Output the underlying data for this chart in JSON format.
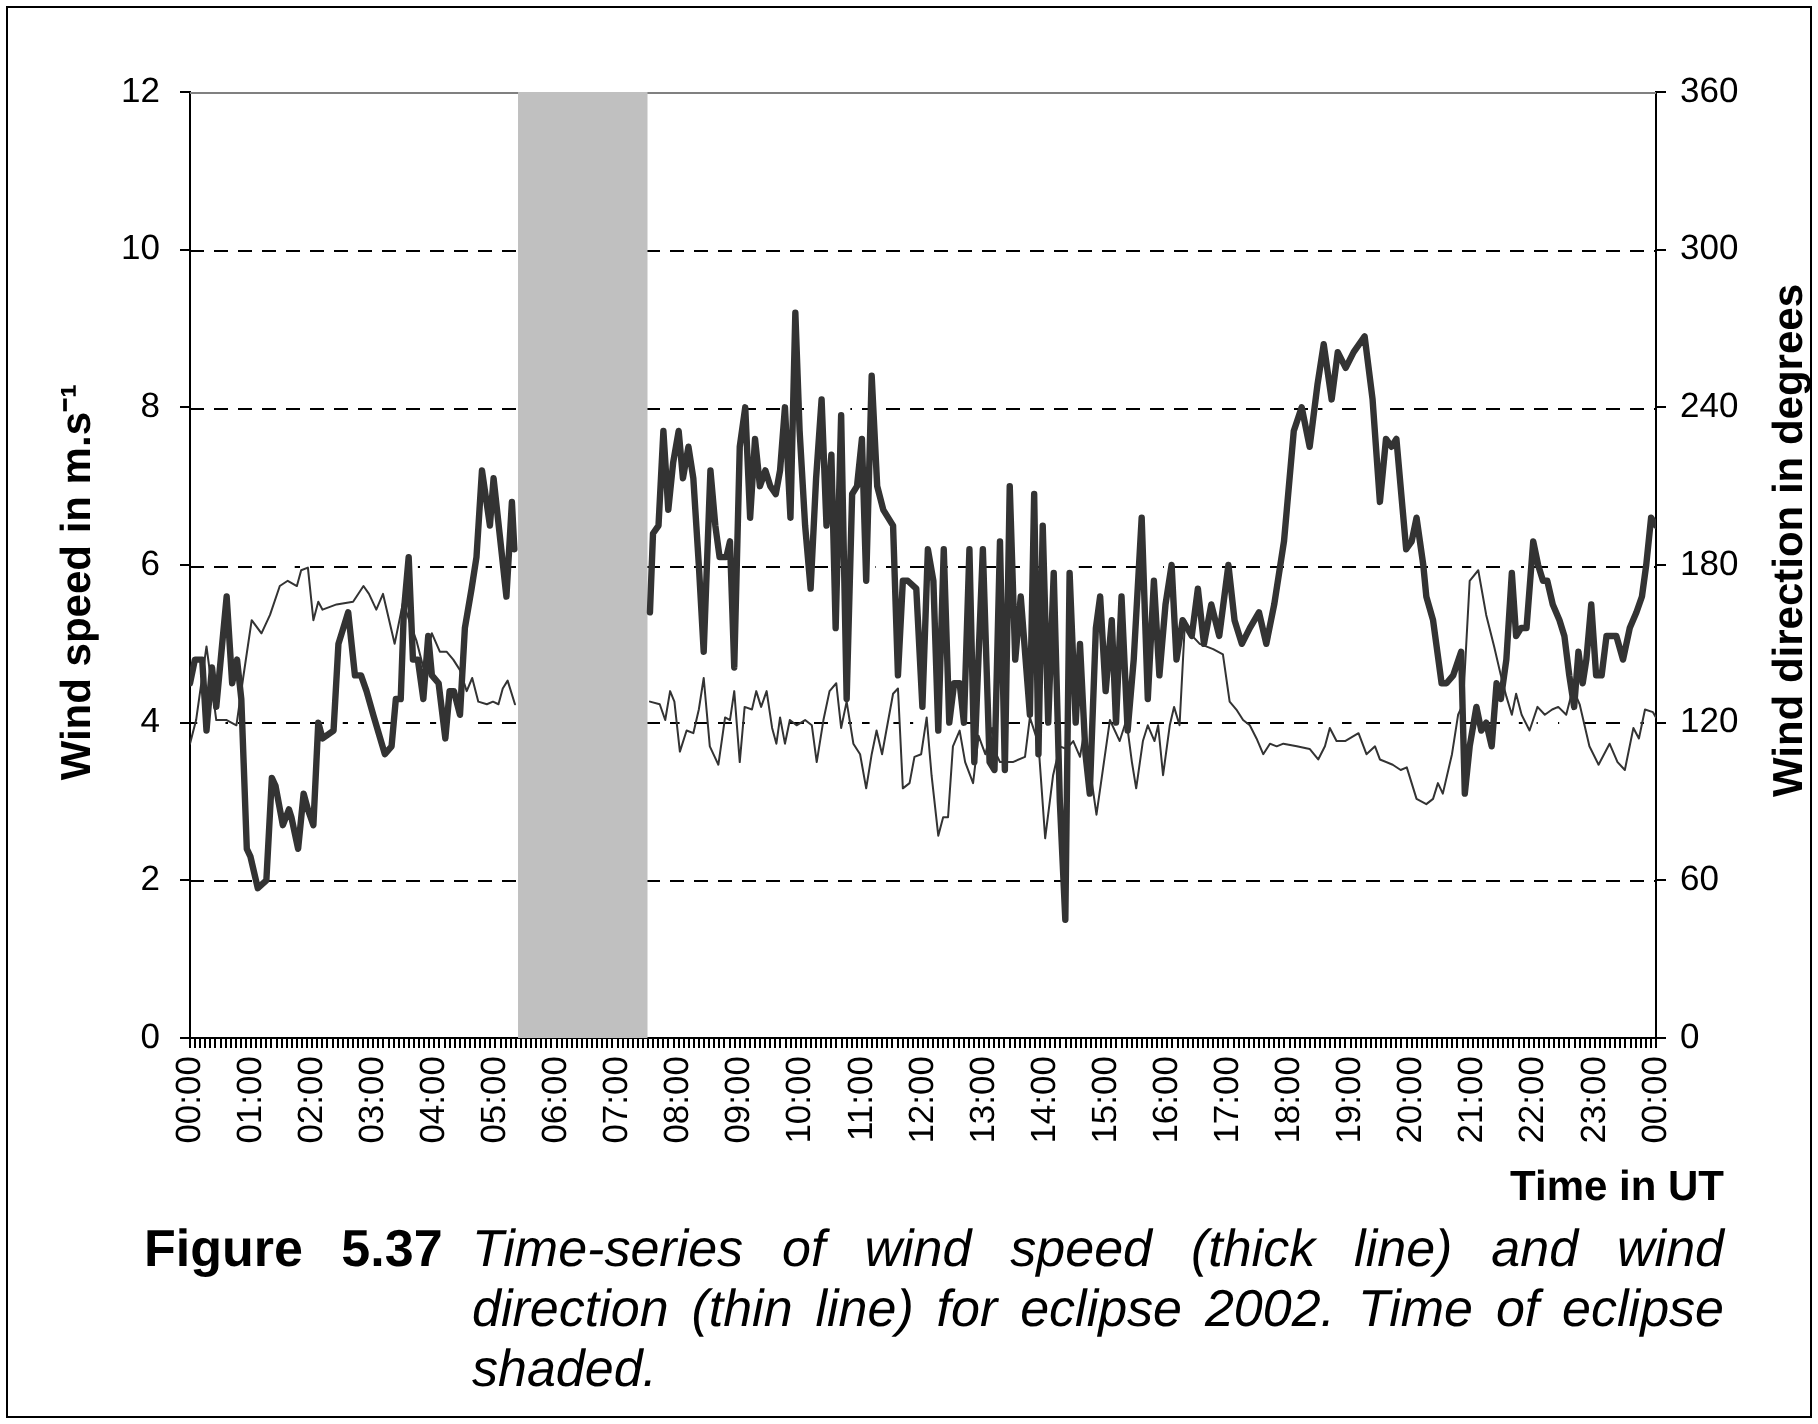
{
  "chart_data": {
    "type": "line",
    "ylabel": "Wind speed in m.s⁻¹",
    "y2label": "Wind direction in degrees",
    "xlabel": "Time in UT",
    "annotations": [
      "Figure 5.37",
      "Time-series of wind speed (thick line) and wind direction (thin line) for eclipse 2002. Time of eclipse shaded."
    ],
    "xlim": [
      0,
      24
    ],
    "xticks": [
      {
        "value": 0,
        "label": "00:00"
      },
      {
        "value": 0.0833,
        "label": null
      },
      {
        "value": 0.1667,
        "label": null
      },
      {
        "value": 0.25,
        "label": null
      },
      {
        "value": 0.3333,
        "label": null
      },
      {
        "value": 0.4167,
        "label": null
      },
      {
        "value": 0.5,
        "label": null
      },
      {
        "value": 0.5833,
        "label": null
      },
      {
        "value": 0.6667,
        "label": null
      },
      {
        "value": 0.75,
        "label": null
      },
      {
        "value": 0.8333,
        "label": null
      },
      {
        "value": 0.9167,
        "label": null
      },
      {
        "value": 1,
        "label": "01:00"
      },
      {
        "value": 1.0833,
        "label": null
      },
      {
        "value": 1.1667,
        "label": null
      },
      {
        "value": 1.25,
        "label": null
      },
      {
        "value": 1.3333,
        "label": null
      },
      {
        "value": 1.4167,
        "label": null
      },
      {
        "value": 1.5,
        "label": null
      },
      {
        "value": 1.5833,
        "label": null
      },
      {
        "value": 1.6667,
        "label": null
      },
      {
        "value": 1.75,
        "label": null
      },
      {
        "value": 1.8333,
        "label": null
      },
      {
        "value": 1.9167,
        "label": null
      },
      {
        "value": 2,
        "label": "02:00"
      },
      {
        "value": 2.0833,
        "label": null
      },
      {
        "value": 2.1667,
        "label": null
      },
      {
        "value": 2.25,
        "label": null
      },
      {
        "value": 2.3333,
        "label": null
      },
      {
        "value": 2.4167,
        "label": null
      },
      {
        "value": 2.5,
        "label": null
      },
      {
        "value": 2.5833,
        "label": null
      },
      {
        "value": 2.6667,
        "label": null
      },
      {
        "value": 2.75,
        "label": null
      },
      {
        "value": 2.8333,
        "label": null
      },
      {
        "value": 2.9167,
        "label": null
      },
      {
        "value": 3,
        "label": "03:00"
      },
      {
        "value": 3.0833,
        "label": null
      },
      {
        "value": 3.1667,
        "label": null
      },
      {
        "value": 3.25,
        "label": null
      },
      {
        "value": 3.3333,
        "label": null
      },
      {
        "value": 3.4167,
        "label": null
      },
      {
        "value": 3.5,
        "label": null
      },
      {
        "value": 3.5833,
        "label": null
      },
      {
        "value": 3.6667,
        "label": null
      },
      {
        "value": 3.75,
        "label": null
      },
      {
        "value": 3.8333,
        "label": null
      },
      {
        "value": 3.9167,
        "label": null
      },
      {
        "value": 4,
        "label": "04:00"
      },
      {
        "value": 4.0833,
        "label": null
      },
      {
        "value": 4.1667,
        "label": null
      },
      {
        "value": 4.25,
        "label": null
      },
      {
        "value": 4.3333,
        "label": null
      },
      {
        "value": 4.4167,
        "label": null
      },
      {
        "value": 4.5,
        "label": null
      },
      {
        "value": 4.5833,
        "label": null
      },
      {
        "value": 4.6667,
        "label": null
      },
      {
        "value": 4.75,
        "label": null
      },
      {
        "value": 4.8333,
        "label": null
      },
      {
        "value": 4.9167,
        "label": null
      },
      {
        "value": 5,
        "label": "05:00"
      },
      {
        "value": 5.0833,
        "label": null
      },
      {
        "value": 5.1667,
        "label": null
      },
      {
        "value": 5.25,
        "label": null
      },
      {
        "value": 5.3333,
        "label": null
      },
      {
        "value": 5.4167,
        "label": null
      },
      {
        "value": 5.5,
        "label": null
      },
      {
        "value": 5.5833,
        "label": null
      },
      {
        "value": 5.6667,
        "label": null
      },
      {
        "value": 5.75,
        "label": null
      },
      {
        "value": 5.8333,
        "label": null
      },
      {
        "value": 5.9167,
        "label": null
      },
      {
        "value": 6,
        "label": "06:00"
      },
      {
        "value": 6.0833,
        "label": null
      },
      {
        "value": 6.1667,
        "label": null
      },
      {
        "value": 6.25,
        "label": null
      },
      {
        "value": 6.3333,
        "label": null
      },
      {
        "value": 6.4167,
        "label": null
      },
      {
        "value": 6.5,
        "label": null
      },
      {
        "value": 6.5833,
        "label": null
      },
      {
        "value": 6.6667,
        "label": null
      },
      {
        "value": 6.75,
        "label": null
      },
      {
        "value": 6.8333,
        "label": null
      },
      {
        "value": 6.9167,
        "label": null
      },
      {
        "value": 7,
        "label": "07:00"
      },
      {
        "value": 7.0833,
        "label": null
      },
      {
        "value": 7.1667,
        "label": null
      },
      {
        "value": 7.25,
        "label": null
      },
      {
        "value": 7.3333,
        "label": null
      },
      {
        "value": 7.4167,
        "label": null
      },
      {
        "value": 7.5,
        "label": null
      },
      {
        "value": 7.5833,
        "label": null
      },
      {
        "value": 7.6667,
        "label": null
      },
      {
        "value": 7.75,
        "label": null
      },
      {
        "value": 7.8333,
        "label": null
      },
      {
        "value": 7.9167,
        "label": null
      },
      {
        "value": 8,
        "label": "08:00"
      },
      {
        "value": 8.0833,
        "label": null
      },
      {
        "value": 8.1667,
        "label": null
      },
      {
        "value": 8.25,
        "label": null
      },
      {
        "value": 8.3333,
        "label": null
      },
      {
        "value": 8.4167,
        "label": null
      },
      {
        "value": 8.5,
        "label": null
      },
      {
        "value": 8.5833,
        "label": null
      },
      {
        "value": 8.6667,
        "label": null
      },
      {
        "value": 8.75,
        "label": null
      },
      {
        "value": 8.8333,
        "label": null
      },
      {
        "value": 8.9167,
        "label": null
      },
      {
        "value": 9,
        "label": "09:00"
      },
      {
        "value": 9.0833,
        "label": null
      },
      {
        "value": 9.1667,
        "label": null
      },
      {
        "value": 9.25,
        "label": null
      },
      {
        "value": 9.3333,
        "label": null
      },
      {
        "value": 9.4167,
        "label": null
      },
      {
        "value": 9.5,
        "label": null
      },
      {
        "value": 9.5833,
        "label": null
      },
      {
        "value": 9.6667,
        "label": null
      },
      {
        "value": 9.75,
        "label": null
      },
      {
        "value": 9.8333,
        "label": null
      },
      {
        "value": 9.9167,
        "label": null
      },
      {
        "value": 10,
        "label": "10:00"
      },
      {
        "value": 10.0833,
        "label": null
      },
      {
        "value": 10.1667,
        "label": null
      },
      {
        "value": 10.25,
        "label": null
      },
      {
        "value": 10.3333,
        "label": null
      },
      {
        "value": 10.4167,
        "label": null
      },
      {
        "value": 10.5,
        "label": null
      },
      {
        "value": 10.5833,
        "label": null
      },
      {
        "value": 10.6667,
        "label": null
      },
      {
        "value": 10.75,
        "label": null
      },
      {
        "value": 10.8333,
        "label": null
      },
      {
        "value": 10.9167,
        "label": null
      },
      {
        "value": 11,
        "label": "11:00"
      },
      {
        "value": 11.0833,
        "label": null
      },
      {
        "value": 11.1667,
        "label": null
      },
      {
        "value": 11.25,
        "label": null
      },
      {
        "value": 11.3333,
        "label": null
      },
      {
        "value": 11.4167,
        "label": null
      },
      {
        "value": 11.5,
        "label": null
      },
      {
        "value": 11.5833,
        "label": null
      },
      {
        "value": 11.6667,
        "label": null
      },
      {
        "value": 11.75,
        "label": null
      },
      {
        "value": 11.8333,
        "label": null
      },
      {
        "value": 11.9167,
        "label": null
      },
      {
        "value": 12,
        "label": "12:00"
      },
      {
        "value": 12.0833,
        "label": null
      },
      {
        "value": 12.1667,
        "label": null
      },
      {
        "value": 12.25,
        "label": null
      },
      {
        "value": 12.3333,
        "label": null
      },
      {
        "value": 12.4167,
        "label": null
      },
      {
        "value": 12.5,
        "label": null
      },
      {
        "value": 12.5833,
        "label": null
      },
      {
        "value": 12.6667,
        "label": null
      },
      {
        "value": 12.75,
        "label": null
      },
      {
        "value": 12.8333,
        "label": null
      },
      {
        "value": 12.9167,
        "label": null
      },
      {
        "value": 13,
        "label": "13:00"
      },
      {
        "value": 13.0833,
        "label": null
      },
      {
        "value": 13.1667,
        "label": null
      },
      {
        "value": 13.25,
        "label": null
      },
      {
        "value": 13.3333,
        "label": null
      },
      {
        "value": 13.4167,
        "label": null
      },
      {
        "value": 13.5,
        "label": null
      },
      {
        "value": 13.5833,
        "label": null
      },
      {
        "value": 13.6667,
        "label": null
      },
      {
        "value": 13.75,
        "label": null
      },
      {
        "value": 13.8333,
        "label": null
      },
      {
        "value": 13.9167,
        "label": null
      },
      {
        "value": 14,
        "label": "14:00"
      },
      {
        "value": 14.0833,
        "label": null
      },
      {
        "value": 14.1667,
        "label": null
      },
      {
        "value": 14.25,
        "label": null
      },
      {
        "value": 14.3333,
        "label": null
      },
      {
        "value": 14.4167,
        "label": null
      },
      {
        "value": 14.5,
        "label": null
      },
      {
        "value": 14.5833,
        "label": null
      },
      {
        "value": 14.6667,
        "label": null
      },
      {
        "value": 14.75,
        "label": null
      },
      {
        "value": 14.8333,
        "label": null
      },
      {
        "value": 14.9167,
        "label": null
      },
      {
        "value": 15,
        "label": "15:00"
      },
      {
        "value": 15.0833,
        "label": null
      },
      {
        "value": 15.1667,
        "label": null
      },
      {
        "value": 15.25,
        "label": null
      },
      {
        "value": 15.3333,
        "label": null
      },
      {
        "value": 15.4167,
        "label": null
      },
      {
        "value": 15.5,
        "label": null
      },
      {
        "value": 15.5833,
        "label": null
      },
      {
        "value": 15.6667,
        "label": null
      },
      {
        "value": 15.75,
        "label": null
      },
      {
        "value": 15.8333,
        "label": null
      },
      {
        "value": 15.9167,
        "label": null
      },
      {
        "value": 16,
        "label": "16:00"
      },
      {
        "value": 16.0833,
        "label": null
      },
      {
        "value": 16.1667,
        "label": null
      },
      {
        "value": 16.25,
        "label": null
      },
      {
        "value": 16.3333,
        "label": null
      },
      {
        "value": 16.4167,
        "label": null
      },
      {
        "value": 16.5,
        "label": null
      },
      {
        "value": 16.5833,
        "label": null
      },
      {
        "value": 16.6667,
        "label": null
      },
      {
        "value": 16.75,
        "label": null
      },
      {
        "value": 16.8333,
        "label": null
      },
      {
        "value": 16.9167,
        "label": null
      },
      {
        "value": 17,
        "label": "17:00"
      },
      {
        "value": 17.0833,
        "label": null
      },
      {
        "value": 17.1667,
        "label": null
      },
      {
        "value": 17.25,
        "label": null
      },
      {
        "value": 17.3333,
        "label": null
      },
      {
        "value": 17.4167,
        "label": null
      },
      {
        "value": 17.5,
        "label": null
      },
      {
        "value": 17.5833,
        "label": null
      },
      {
        "value": 17.6667,
        "label": null
      },
      {
        "value": 17.75,
        "label": null
      },
      {
        "value": 17.8333,
        "label": null
      },
      {
        "value": 17.9167,
        "label": null
      },
      {
        "value": 18,
        "label": "18:00"
      },
      {
        "value": 18.0833,
        "label": null
      },
      {
        "value": 18.1667,
        "label": null
      },
      {
        "value": 18.25,
        "label": null
      },
      {
        "value": 18.3333,
        "label": null
      },
      {
        "value": 18.4167,
        "label": null
      },
      {
        "value": 18.5,
        "label": null
      },
      {
        "value": 18.5833,
        "label": null
      },
      {
        "value": 18.6667,
        "label": null
      },
      {
        "value": 18.75,
        "label": null
      },
      {
        "value": 18.8333,
        "label": null
      },
      {
        "value": 18.9167,
        "label": null
      },
      {
        "value": 19,
        "label": "19:00"
      },
      {
        "value": 19.0833,
        "label": null
      },
      {
        "value": 19.1667,
        "label": null
      },
      {
        "value": 19.25,
        "label": null
      },
      {
        "value": 19.3333,
        "label": null
      },
      {
        "value": 19.4167,
        "label": null
      },
      {
        "value": 19.5,
        "label": null
      },
      {
        "value": 19.5833,
        "label": null
      },
      {
        "value": 19.6667,
        "label": null
      },
      {
        "value": 19.75,
        "label": null
      },
      {
        "value": 19.8333,
        "label": null
      },
      {
        "value": 19.9167,
        "label": null
      },
      {
        "value": 20,
        "label": "20:00"
      },
      {
        "value": 20.0833,
        "label": null
      },
      {
        "value": 20.1667,
        "label": null
      },
      {
        "value": 20.25,
        "label": null
      },
      {
        "value": 20.3333,
        "label": null
      },
      {
        "value": 20.4167,
        "label": null
      },
      {
        "value": 20.5,
        "label": null
      },
      {
        "value": 20.5833,
        "label": null
      },
      {
        "value": 20.6667,
        "label": null
      },
      {
        "value": 20.75,
        "label": null
      },
      {
        "value": 20.8333,
        "label": null
      },
      {
        "value": 20.9167,
        "label": null
      },
      {
        "value": 21,
        "label": "21:00"
      },
      {
        "value": 21.0833,
        "label": null
      },
      {
        "value": 21.1667,
        "label": null
      },
      {
        "value": 21.25,
        "label": null
      },
      {
        "value": 21.3333,
        "label": null
      },
      {
        "value": 21.4167,
        "label": null
      },
      {
        "value": 21.5,
        "label": null
      },
      {
        "value": 21.5833,
        "label": null
      },
      {
        "value": 21.6667,
        "label": null
      },
      {
        "value": 21.75,
        "label": null
      },
      {
        "value": 21.8333,
        "label": null
      },
      {
        "value": 21.9167,
        "label": null
      },
      {
        "value": 22,
        "label": "22:00"
      },
      {
        "value": 22.0833,
        "label": null
      },
      {
        "value": 22.1667,
        "label": null
      },
      {
        "value": 22.25,
        "label": null
      },
      {
        "value": 22.3333,
        "label": null
      },
      {
        "value": 22.4167,
        "label": null
      },
      {
        "value": 22.5,
        "label": null
      },
      {
        "value": 22.5833,
        "label": null
      },
      {
        "value": 22.6667,
        "label": null
      },
      {
        "value": 22.75,
        "label": null
      },
      {
        "value": 22.8333,
        "label": null
      },
      {
        "value": 22.9167,
        "label": null
      },
      {
        "value": 23,
        "label": "23:00"
      },
      {
        "value": 23.0833,
        "label": null
      },
      {
        "value": 23.1667,
        "label": null
      },
      {
        "value": 23.25,
        "label": null
      },
      {
        "value": 23.3333,
        "label": null
      },
      {
        "value": 23.4167,
        "label": null
      },
      {
        "value": 23.5,
        "label": null
      },
      {
        "value": 23.5833,
        "label": null
      },
      {
        "value": 23.6667,
        "label": null
      },
      {
        "value": 23.75,
        "label": null
      },
      {
        "value": 23.8333,
        "label": null
      },
      {
        "value": 23.9167,
        "label": null
      },
      {
        "value": 24,
        "label": "00:00"
      }
    ],
    "ylim": [
      0,
      12
    ],
    "yticks": [
      0,
      2,
      4,
      6,
      8,
      10,
      12
    ],
    "y2lim": [
      0,
      360
    ],
    "y2ticks": [
      0,
      60,
      120,
      180,
      240,
      300,
      360
    ],
    "grid": "y",
    "marker": "none",
    "line_style": "solid",
    "bands": [
      {
        "axis": "x",
        "from": 5.37,
        "to": 7.49,
        "color": "#c0c0c0"
      }
    ],
    "series": [
      {
        "color": "#333333",
        "x": [
          0,
          0.08,
          0.2,
          0.27,
          0.36,
          0.43,
          0.6,
          0.69,
          0.77,
          0.84,
          0.93,
          0.99,
          1.11,
          1.25,
          1.34,
          1.4,
          1.52,
          1.62,
          1.66,
          1.77,
          1.86,
          1.93,
          2.02,
          2.1,
          2.17,
          2.35,
          2.43,
          2.59,
          2.7,
          2.8,
          2.89,
          3.0,
          3.19,
          3.3,
          3.37,
          3.45,
          3.5,
          3.58,
          3.65,
          3.73,
          3.82,
          3.9,
          3.96,
          4.07,
          4.18,
          4.25,
          4.32,
          4.42,
          4.5,
          4.61,
          4.69,
          4.78,
          4.91,
          4.97,
          5.18,
          5.27,
          5.31,
          6.43,
          7.53,
          7.58,
          7.67,
          7.75,
          7.83,
          7.91,
          8.0,
          8.07,
          8.16,
          8.24,
          8.33,
          8.41,
          8.52,
          8.6,
          8.67,
          8.78,
          8.84,
          8.91,
          9.0,
          9.09,
          9.17,
          9.25,
          9.33,
          9.42,
          9.5,
          9.59,
          9.66,
          9.74,
          9.83,
          9.91,
          9.98,
          10.07,
          10.16,
          10.25,
          10.34,
          10.42,
          10.5,
          10.57,
          10.66,
          10.75,
          10.84,
          10.92,
          11.0,
          11.07,
          11.16,
          11.25,
          11.35,
          11.51,
          11.59,
          11.67,
          11.75,
          11.89,
          11.99,
          12.08,
          12.17,
          12.25,
          12.34,
          12.43,
          12.51,
          12.6,
          12.67,
          12.76,
          12.84,
          12.98,
          13.09,
          13.17,
          13.26,
          13.34,
          13.42,
          13.51,
          13.6,
          13.75,
          13.82,
          13.89,
          13.96,
          14.05,
          14.14,
          14.24,
          14.33,
          14.4,
          14.5,
          14.57,
          14.66,
          14.73,
          14.83,
          14.9,
          14.99,
          15.09,
          15.16,
          15.25,
          15.35,
          15.45,
          15.58,
          15.68,
          15.78,
          15.87,
          15.97,
          16.07,
          16.15,
          16.25,
          16.4,
          16.5,
          16.6,
          16.72,
          16.85,
          17.0,
          17.1,
          17.22,
          17.35,
          17.5,
          17.62,
          17.75,
          17.91,
          18.07,
          18.2,
          18.33,
          18.46,
          18.56,
          18.69,
          18.79,
          18.92,
          19.05,
          19.23,
          19.36,
          19.48,
          19.58,
          19.67,
          19.75,
          19.91,
          20.0,
          20.08,
          20.19,
          20.24,
          20.35,
          20.49,
          20.57,
          20.68,
          20.81,
          20.87,
          20.95,
          21.06,
          21.14,
          21.22,
          21.31,
          21.39,
          21.46,
          21.55,
          21.64,
          21.71,
          21.79,
          21.88,
          21.99,
          22.07,
          22.15,
          22.22,
          22.31,
          22.42,
          22.5,
          22.58,
          22.66,
          22.73,
          22.8,
          22.86,
          22.94,
          23.02,
          23.11,
          23.19,
          23.27,
          23.35,
          23.46,
          23.57,
          23.68,
          23.77,
          23.84,
          23.92,
          24.0
        ],
        "values": [
          4.5,
          4.8,
          4.8,
          3.9,
          4.7,
          4.2,
          5.6,
          4.5,
          4.8,
          4.3,
          2.4,
          2.3,
          1.9,
          2.0,
          3.3,
          3.2,
          2.7,
          2.9,
          2.8,
          2.4,
          3.1,
          2.9,
          2.7,
          4.0,
          3.8,
          3.9,
          5.0,
          5.4,
          4.6,
          4.6,
          4.4,
          4.1,
          3.6,
          3.7,
          4.3,
          4.3,
          5.4,
          6.1,
          4.8,
          4.8,
          4.3,
          5.1,
          4.6,
          4.5,
          3.8,
          4.4,
          4.4,
          4.1,
          5.2,
          5.7,
          6.1,
          7.2,
          6.5,
          7.1,
          5.6,
          6.8,
          6.2,
          null,
          5.4,
          6.4,
          6.5,
          7.7,
          6.7,
          7.3,
          7.7,
          7.1,
          7.5,
          7.1,
          6.0,
          4.9,
          7.2,
          6.5,
          6.1,
          6.1,
          6.3,
          4.7,
          7.5,
          8.0,
          6.6,
          7.6,
          7.0,
          7.2,
          7.0,
          6.9,
          7.2,
          8.0,
          6.6,
          9.2,
          7.7,
          6.5,
          5.7,
          7.1,
          8.1,
          6.5,
          7.4,
          5.2,
          7.9,
          4.3,
          6.9,
          7.0,
          7.6,
          5.8,
          8.4,
          7.0,
          6.7,
          6.5,
          4.6,
          5.8,
          5.8,
          5.7,
          4.2,
          6.2,
          5.8,
          3.9,
          6.2,
          4.0,
          4.5,
          4.5,
          4.0,
          6.2,
          3.5,
          6.2,
          3.5,
          3.4,
          6.3,
          3.4,
          7.0,
          4.8,
          5.6,
          4.1,
          6.9,
          3.6,
          6.5,
          4.0,
          5.9,
          3.0,
          1.5,
          5.9,
          4.0,
          5.0,
          3.6,
          3.1,
          5.2,
          5.6,
          4.4,
          5.3,
          4.0,
          5.6,
          3.9,
          4.8,
          6.6,
          4.3,
          5.8,
          4.6,
          5.5,
          6.0,
          4.8,
          5.3,
          5.1,
          5.7,
          5.0,
          5.5,
          5.1,
          6.0,
          5.3,
          5.0,
          5.2,
          5.4,
          5.0,
          5.5,
          6.3,
          7.7,
          8.0,
          7.5,
          8.3,
          8.8,
          8.1,
          8.7,
          8.5,
          8.7,
          8.9,
          8.1,
          6.8,
          7.6,
          7.5,
          7.6,
          6.2,
          6.3,
          6.6,
          6.0,
          5.6,
          5.3,
          4.5,
          4.5,
          4.6,
          4.9,
          3.1,
          3.7,
          4.2,
          3.9,
          4.0,
          3.7,
          4.5,
          4.3,
          4.8,
          5.9,
          5.1,
          5.2,
          5.2,
          6.3,
          6.0,
          5.8,
          5.8,
          5.5,
          5.3,
          5.1,
          4.6,
          4.2,
          4.9,
          4.5,
          4.8,
          5.5,
          4.6,
          4.6,
          5.1,
          5.1,
          5.1,
          4.8,
          5.2,
          5.4,
          5.6,
          6.0,
          6.6,
          6.5
        ]
      },
      {
        "color": "#333333",
        "axis": "y2",
        "x": [
          0,
          0.1,
          0.27,
          0.43,
          0.6,
          0.76,
          0.87,
          1.01,
          1.17,
          1.31,
          1.47,
          1.6,
          1.75,
          1.82,
          1.93,
          2.02,
          2.1,
          2.17,
          2.4,
          2.67,
          2.84,
          2.93,
          3.05,
          3.16,
          3.31,
          3.35,
          3.49,
          3.6,
          3.71,
          3.82,
          3.96,
          4.09,
          4.2,
          4.31,
          4.42,
          4.53,
          4.62,
          4.72,
          4.86,
          4.96,
          5.05,
          5.12,
          5.2,
          5.32,
          6.43,
          7.53,
          7.69,
          7.78,
          7.86,
          7.93,
          8.02,
          8.13,
          8.24,
          8.33,
          8.41,
          8.51,
          8.65,
          8.76,
          8.84,
          8.91,
          9.0,
          9.08,
          9.2,
          9.27,
          9.35,
          9.44,
          9.53,
          9.6,
          9.66,
          9.74,
          9.82,
          9.93,
          10.07,
          10.18,
          10.26,
          10.37,
          10.47,
          10.58,
          10.66,
          10.75,
          10.86,
          10.97,
          11.07,
          11.16,
          11.24,
          11.33,
          11.4,
          11.51,
          11.59,
          11.67,
          11.78,
          11.86,
          11.97,
          12.06,
          12.14,
          12.25,
          12.33,
          12.41,
          12.49,
          12.6,
          12.69,
          12.82,
          12.91,
          13.02,
          13.13,
          13.2,
          13.26,
          13.47,
          13.67,
          13.75,
          13.89,
          14.0,
          14.13,
          14.24,
          14.35,
          14.46,
          14.57,
          14.65,
          14.73,
          14.84,
          14.95,
          15.06,
          15.22,
          15.33,
          15.42,
          15.49,
          15.6,
          15.68,
          15.79,
          15.85,
          15.93,
          16.04,
          16.11,
          16.2,
          16.29,
          16.37,
          16.53,
          16.75,
          16.91,
          17.02,
          17.13,
          17.24,
          17.35,
          17.46,
          17.57,
          17.68,
          17.79,
          17.9,
          18.12,
          18.33,
          18.47,
          18.58,
          18.66,
          18.77,
          18.91,
          19.13,
          19.26,
          19.4,
          19.48,
          19.69,
          19.82,
          19.92,
          20.08,
          20.24,
          20.35,
          20.43,
          20.51,
          20.66,
          20.76,
          20.84,
          20.95,
          21.09,
          21.22,
          21.35,
          21.46,
          21.55,
          21.64,
          21.71,
          21.8,
          21.93,
          22.06,
          22.18,
          22.3,
          22.4,
          22.53,
          22.64,
          22.75,
          22.91,
          23.06,
          23.24,
          23.37,
          23.49,
          23.63,
          23.72,
          23.82,
          23.95,
          24.0
        ],
        "values": [
          112,
          121,
          149,
          121,
          121,
          119,
          137,
          159,
          154,
          161,
          172,
          174,
          172,
          178,
          179,
          159,
          166,
          163,
          165,
          166,
          172,
          169,
          163,
          169,
          154,
          150,
          166,
          158,
          151,
          141,
          154,
          147,
          147,
          144,
          140,
          132,
          137,
          128,
          127,
          128,
          127,
          133,
          136,
          127,
          null,
          128,
          127,
          121,
          132,
          128,
          109,
          117,
          116,
          125,
          137,
          111,
          104,
          122,
          121,
          132,
          105,
          126,
          125,
          132,
          126,
          132,
          118,
          112,
          122,
          112,
          121,
          119,
          121,
          119,
          105,
          121,
          132,
          135,
          118,
          128,
          112,
          108,
          95,
          108,
          117,
          108,
          117,
          131,
          133,
          95,
          97,
          107,
          108,
          122,
          100,
          77,
          84,
          84,
          111,
          117,
          105,
          97,
          115,
          108,
          118,
          108,
          105,
          105,
          107,
          122,
          112,
          76,
          100,
          111,
          110,
          113,
          107,
          118,
          103,
          85,
          103,
          121,
          113,
          121,
          105,
          95,
          113,
          119,
          113,
          119,
          100,
          119,
          126,
          119,
          159,
          154,
          150,
          148,
          146,
          128,
          125,
          121,
          119,
          114,
          108,
          112,
          111,
          112,
          111,
          110,
          106,
          111,
          118,
          113,
          113,
          116,
          108,
          111,
          106,
          104,
          102,
          103,
          91,
          89,
          91,
          97,
          93,
          108,
          123,
          127,
          174,
          178,
          161,
          149,
          138,
          130,
          123,
          131,
          123,
          117,
          126,
          123,
          125,
          126,
          123,
          133,
          127,
          111,
          104,
          112,
          105,
          102,
          118,
          114,
          125,
          124,
          122
        ]
      }
    ]
  }
}
